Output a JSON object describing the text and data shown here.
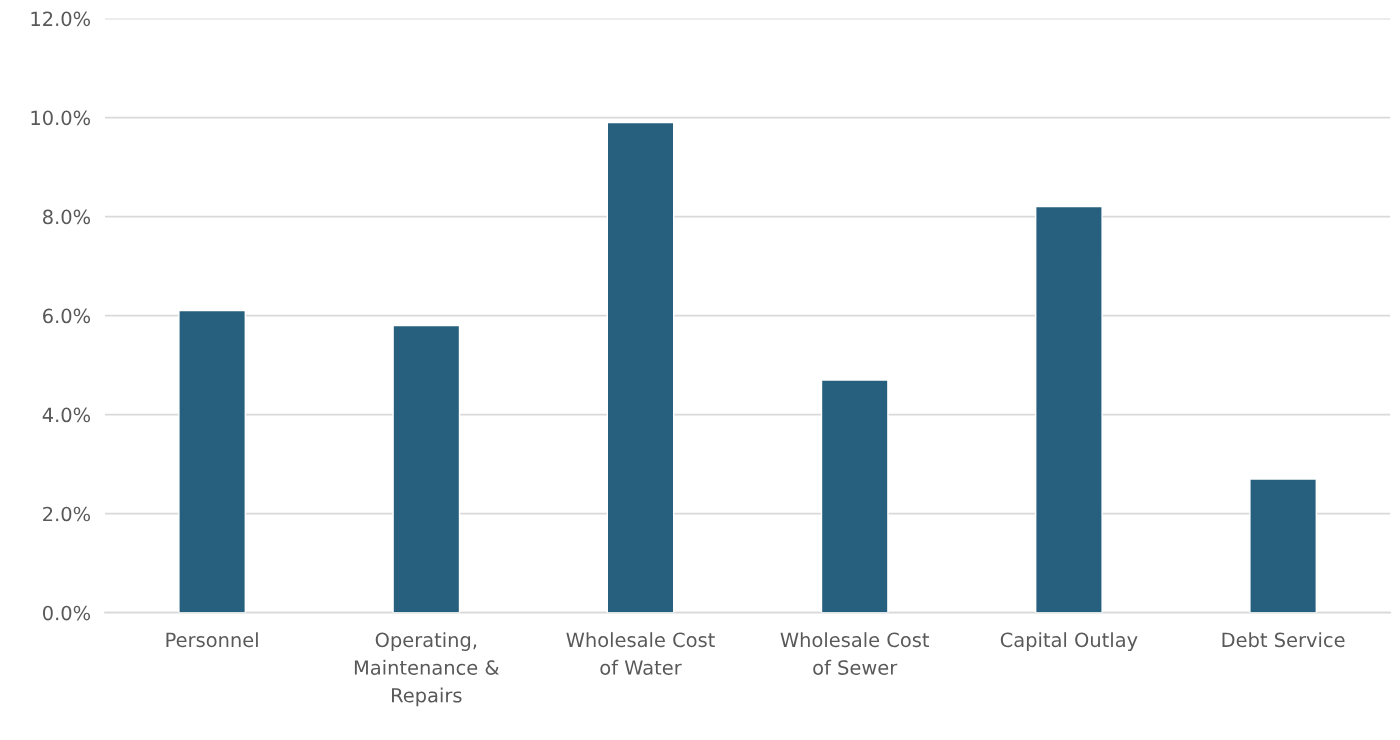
{
  "chart_data": {
    "type": "bar",
    "categories": [
      "Personnel",
      "Operating,\nMaintenance &\nRepairs",
      "Wholesale Cost\nof Water",
      "Wholesale Cost\nof Sewer",
      "Capital Outlay",
      "Debt Service"
    ],
    "values": [
      6.1,
      5.8,
      9.9,
      4.7,
      8.2,
      2.7
    ],
    "color": "#27607e",
    "ylim": [
      0,
      12
    ],
    "yticks": [
      {
        "value": 0,
        "label": "0.0%"
      },
      {
        "value": 2,
        "label": "2.0%"
      },
      {
        "value": 4,
        "label": "4.0%"
      },
      {
        "value": 6,
        "label": "6.0%"
      },
      {
        "value": 8,
        "label": "8.0%"
      },
      {
        "value": 10,
        "label": "10.0%"
      },
      {
        "value": 12,
        "label": "12.0%"
      }
    ],
    "grid": "y"
  }
}
